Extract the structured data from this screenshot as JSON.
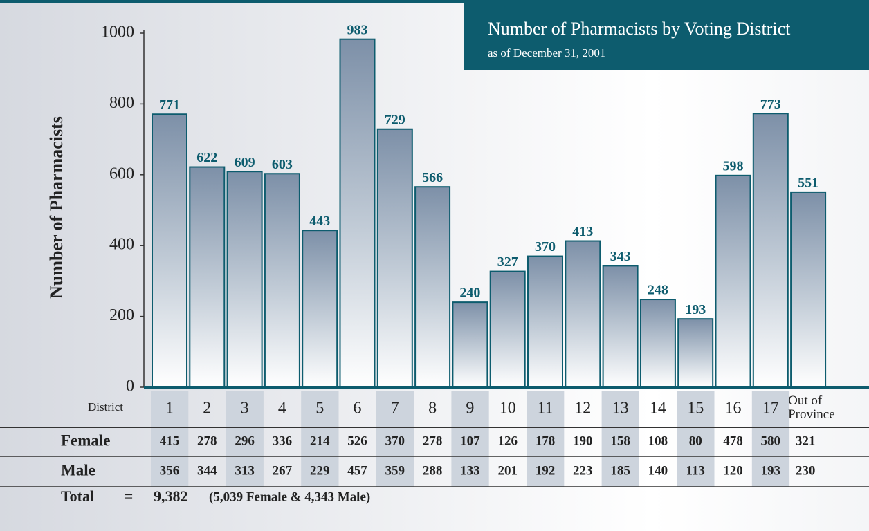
{
  "chart_data": {
    "type": "bar",
    "title": "Number of Pharmacists by Voting District",
    "subtitle": "as of December 31, 2001",
    "y_label": "Number of Pharmacists",
    "x_label": "District",
    "categories": [
      "1",
      "2",
      "3",
      "4",
      "5",
      "6",
      "7",
      "8",
      "9",
      "10",
      "11",
      "12",
      "13",
      "14",
      "15",
      "16",
      "17",
      "Out of Province"
    ],
    "values": [
      771,
      622,
      609,
      603,
      443,
      983,
      729,
      566,
      240,
      327,
      370,
      413,
      343,
      248,
      193,
      598,
      773,
      551
    ],
    "color": "#7d90a8",
    "ylim": [
      0,
      1000
    ],
    "yticks": [
      0,
      200,
      400,
      600,
      800,
      1000
    ]
  },
  "table": {
    "row_labels": [
      "Female",
      "Male"
    ],
    "rows": [
      [
        "415",
        "278",
        "296",
        "336",
        "214",
        "526",
        "370",
        "278",
        "107",
        "126",
        "178",
        "190",
        "158",
        "108",
        "80",
        "478",
        "580",
        "321"
      ],
      [
        "356",
        "344",
        "313",
        "267",
        "229",
        "457",
        "359",
        "288",
        "133",
        "201",
        "192",
        "223",
        "185",
        "140",
        "113",
        "120",
        "193",
        "230"
      ]
    ]
  },
  "total": {
    "label": "Total",
    "equals": "=",
    "value": "9,382",
    "detail": "(5,039 Female & 4,343 Male)"
  }
}
